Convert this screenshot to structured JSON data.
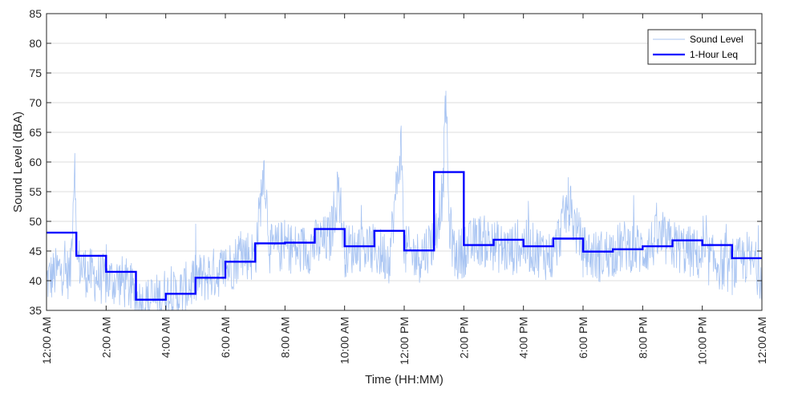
{
  "chart_data": {
    "type": "line",
    "xlabel": "Time (HH:MM)",
    "ylabel": "Sound Level (dBA)",
    "ylim": [
      35,
      85
    ],
    "xlim": [
      "12:00 AM",
      "12:00 AM (next day)"
    ],
    "xlim_hours": [
      0,
      24
    ],
    "grid": "horizontal",
    "legend_position": "top-right",
    "y_ticks": [
      35,
      40,
      45,
      50,
      55,
      60,
      65,
      70,
      75,
      80,
      85
    ],
    "x_ticks": [
      {
        "hour": 0,
        "label": "12:00 AM"
      },
      {
        "hour": 2,
        "label": "2:00 AM"
      },
      {
        "hour": 4,
        "label": "4:00 AM"
      },
      {
        "hour": 6,
        "label": "6:00 AM"
      },
      {
        "hour": 8,
        "label": "8:00 AM"
      },
      {
        "hour": 10,
        "label": "10:00 AM"
      },
      {
        "hour": 12,
        "label": "12:00 PM"
      },
      {
        "hour": 14,
        "label": "2:00 PM"
      },
      {
        "hour": 16,
        "label": "4:00 PM"
      },
      {
        "hour": 18,
        "label": "6:00 PM"
      },
      {
        "hour": 20,
        "label": "8:00 PM"
      },
      {
        "hour": 22,
        "label": "10:00 PM"
      },
      {
        "hour": 24,
        "label": "12:00 AM"
      }
    ],
    "series": [
      {
        "name": "Sound Level",
        "color": "#a8c4f2",
        "style": "thin",
        "x": [
          0,
          0.5,
          0.8,
          0.95,
          1,
          1.2,
          1.5,
          2,
          2.5,
          2.8,
          3,
          3.2,
          3.5,
          3.8,
          4,
          4.2,
          4.5,
          5,
          5.5,
          6,
          6.3,
          6.5,
          7,
          7.3,
          7.5,
          8,
          8.5,
          9,
          9.5,
          9.8,
          10,
          10.5,
          11,
          11.5,
          11.9,
          12,
          12.5,
          13,
          13.3,
          13.4,
          13.5,
          13.7,
          14,
          14.5,
          15,
          15.5,
          16,
          16.5,
          17,
          17.5,
          18,
          18.5,
          19,
          19.5,
          20,
          20.5,
          21,
          21.5,
          22,
          22.5,
          23,
          23.5,
          24
        ],
        "y": [
          40,
          42,
          41,
          61.5,
          44,
          42,
          41,
          40,
          40,
          39,
          37,
          36,
          36.5,
          37,
          38,
          37,
          38,
          40,
          41,
          42,
          43,
          45,
          44,
          59.5,
          45,
          46,
          45,
          46,
          47,
          56,
          45,
          46,
          45,
          44,
          63,
          45,
          44,
          47,
          55,
          72,
          50,
          44,
          45,
          47,
          46,
          45,
          46,
          45,
          44,
          53,
          45,
          44,
          45,
          46,
          45,
          47,
          46,
          45,
          44,
          43,
          42,
          44,
          41
        ]
      },
      {
        "name": "1-Hour Leq",
        "color": "#0000ff",
        "style": "step",
        "hour_start": [
          0,
          1,
          2,
          3,
          4,
          5,
          6,
          7,
          8,
          9,
          10,
          11,
          12,
          13,
          14,
          15,
          16,
          17,
          18,
          19,
          20,
          21,
          22,
          23
        ],
        "values": [
          48.1,
          44.2,
          41.5,
          36.8,
          37.8,
          40.5,
          43.2,
          46.3,
          46.4,
          48.7,
          45.8,
          48.4,
          45.1,
          58.3,
          46.0,
          46.9,
          45.8,
          47.1,
          44.9,
          45.3,
          45.8,
          46.8,
          46.0,
          43.8
        ]
      }
    ]
  }
}
